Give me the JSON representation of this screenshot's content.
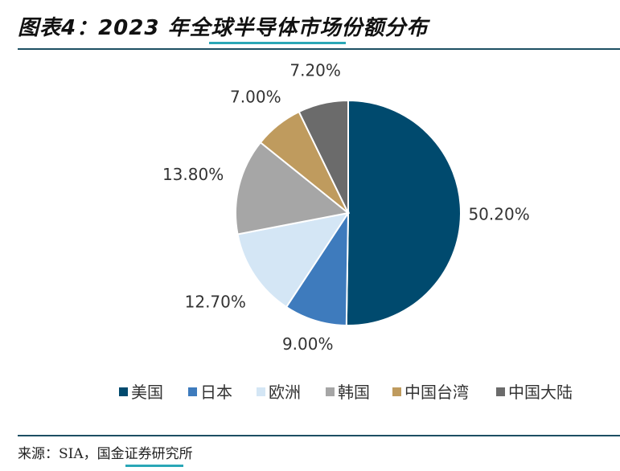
{
  "header": {
    "title": "图表4：2023 年全球半导体市场份额分布"
  },
  "footer": {
    "source": "来源：SIA，国金证券研究所"
  },
  "chart_data": {
    "type": "pie",
    "title": "图表4：2023 年全球半导体市场份额分布",
    "categories": [
      "美国",
      "日本",
      "欧洲",
      "韩国",
      "中国台湾",
      "中国大陆"
    ],
    "values": [
      50.2,
      9.0,
      12.7,
      13.8,
      7.0,
      7.2
    ],
    "data_labels": [
      "50.20%",
      "9.00%",
      "12.70%",
      "13.80%",
      "7.00%",
      "7.20%"
    ],
    "colors": [
      "#004a6e",
      "#3e7bbd",
      "#d4e6f5",
      "#a6a6a6",
      "#bf9b5e",
      "#6b6b6b"
    ],
    "start_angle_deg": 0,
    "direction": "clockwise",
    "legend": {
      "position": "bottom"
    }
  }
}
